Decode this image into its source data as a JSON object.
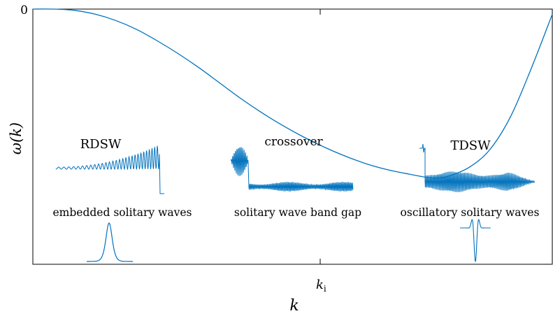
{
  "chart_data": {
    "type": "line",
    "title": "",
    "xlabel": "k",
    "ylabel": "ω(k)",
    "x_ticks": [
      {
        "label": "k",
        "subscript": "i"
      }
    ],
    "y_ticks": [
      "0"
    ],
    "xlim": [
      0,
      1
    ],
    "ylim": [
      -1,
      0
    ],
    "grid": false,
    "series": [
      {
        "x": [
          0.0,
          0.04,
          0.08,
          0.12,
          0.16,
          0.2,
          0.24,
          0.28,
          0.32,
          0.36,
          0.4,
          0.44,
          0.48,
          0.52,
          0.56,
          0.6,
          0.64,
          0.68,
          0.72,
          0.76,
          0.78,
          0.8,
          0.84,
          0.88,
          0.92,
          0.96,
          1.0
        ],
        "y": [
          0.0,
          0.0,
          -0.005,
          -0.02,
          -0.045,
          -0.08,
          -0.125,
          -0.175,
          -0.23,
          -0.29,
          -0.35,
          -0.405,
          -0.455,
          -0.5,
          -0.54,
          -0.575,
          -0.605,
          -0.628,
          -0.645,
          -0.66,
          -0.662,
          -0.655,
          -0.62,
          -0.55,
          -0.42,
          -0.23,
          -0.02
        ]
      }
    ],
    "annotations": {
      "regions": [
        {
          "title": "RDSW",
          "caption": "embedded solitary waves"
        },
        {
          "title": "crossover",
          "caption": "solitary wave band gap"
        },
        {
          "title": "TDSW",
          "caption": "oscillatory solitary waves"
        }
      ]
    },
    "colors": {
      "line": "#0072BD",
      "axes": "#000000"
    }
  }
}
